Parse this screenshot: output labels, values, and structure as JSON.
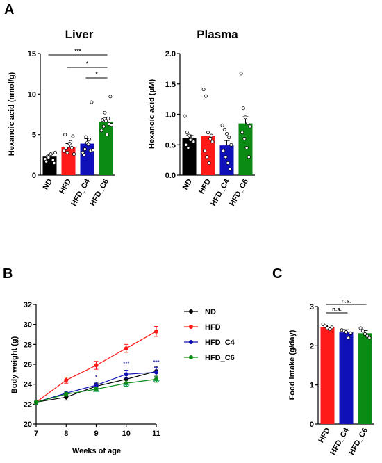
{
  "panels": {
    "a": "A",
    "b": "B",
    "c": "C"
  },
  "colors": {
    "ND": "#000000",
    "HFD": "#ff1a1a",
    "HFD_C4": "#1010b8",
    "HFD_C6": "#0b8a14",
    "sig_blue": "#2b2ba0",
    "sig_green": "#10a060"
  },
  "chart_data": [
    {
      "id": "liver",
      "type": "bar",
      "title": "Liver",
      "ylabel": "Hexanoic acid (nmol/g)",
      "ylim": [
        0,
        15
      ],
      "yticks": [
        "0",
        "5",
        "10",
        "15"
      ],
      "categories": [
        "ND",
        "HFD",
        "HFD_C4",
        "HFD_C6"
      ],
      "values": [
        2.3,
        3.5,
        3.9,
        6.6
      ],
      "errors": [
        0.3,
        0.4,
        0.6,
        0.5
      ],
      "points": [
        [
          2.0,
          2.3,
          2.5,
          2.7,
          1.5,
          1.7,
          2.2,
          2.6,
          1.9,
          2.8
        ],
        [
          3.0,
          3.3,
          3.6,
          4.1,
          4.8,
          5.0,
          2.8,
          3.9,
          3.4,
          2.6
        ],
        [
          2.8,
          3.2,
          4.0,
          4.4,
          9.0,
          2.5,
          4.7,
          3.8,
          3.0,
          3.1
        ],
        [
          5.5,
          6.0,
          6.7,
          7.0,
          9.7,
          6.8,
          7.7,
          5.0,
          6.3,
          6.2
        ]
      ],
      "brackets": [
        {
          "from": 0,
          "to": 3,
          "label": "***"
        },
        {
          "from": 1,
          "to": 3,
          "label": "*"
        },
        {
          "from": 2,
          "to": 3,
          "label": "*"
        }
      ]
    },
    {
      "id": "plasma",
      "type": "bar",
      "title": "Plasma",
      "ylabel": "Hexanoic acid (μM)",
      "ylim": [
        0,
        2.0
      ],
      "yticks": [
        "0.0",
        "0.5",
        "1.0",
        "1.5",
        "2.0"
      ],
      "categories": [
        "ND",
        "HFD",
        "HFD_C4",
        "HFD_C6"
      ],
      "values": [
        0.61,
        0.64,
        0.49,
        0.85
      ],
      "errors": [
        0.05,
        0.12,
        0.08,
        0.11
      ],
      "points": [
        [
          0.97,
          0.7,
          0.65,
          0.6,
          0.55,
          0.5,
          0.45,
          0.58,
          0.63
        ],
        [
          1.41,
          1.3,
          0.7,
          0.6,
          0.55,
          0.4,
          0.3,
          0.2,
          0.65
        ],
        [
          0.82,
          0.75,
          0.68,
          0.62,
          0.5,
          0.4,
          0.3,
          0.2,
          0.1
        ],
        [
          1.67,
          1.1,
          0.95,
          0.85,
          0.8,
          0.7,
          0.6,
          0.45,
          0.3
        ]
      ]
    },
    {
      "id": "bodyweight",
      "type": "line",
      "xlabel": "Weeks of age",
      "ylabel": "Body weight (g)",
      "xlim": [
        7,
        11
      ],
      "ylim": [
        20,
        32
      ],
      "xticks": [
        "7",
        "8",
        "9",
        "10",
        "11"
      ],
      "yticks": [
        "20",
        "22",
        "24",
        "26",
        "28",
        "30",
        "32"
      ],
      "x": [
        7,
        8,
        9,
        10,
        11
      ],
      "series": [
        {
          "name": "ND",
          "colorKey": "ND",
          "values": [
            22.2,
            22.7,
            23.8,
            24.5,
            25.3
          ],
          "errors": [
            0.2,
            0.3,
            0.3,
            0.4,
            0.5
          ]
        },
        {
          "name": "HFD",
          "colorKey": "HFD",
          "values": [
            22.2,
            24.4,
            25.9,
            27.6,
            29.3
          ],
          "errors": [
            0.2,
            0.3,
            0.4,
            0.4,
            0.5
          ]
        },
        {
          "name": "HFD_C4",
          "colorKey": "HFD_C4",
          "values": [
            22.2,
            23.1,
            23.9,
            25.0,
            25.2
          ],
          "errors": [
            0.2,
            0.2,
            0.3,
            0.4,
            0.5
          ]
        },
        {
          "name": "HFD_C6",
          "colorKey": "HFD_C6",
          "values": [
            22.2,
            23.0,
            23.5,
            24.1,
            24.5
          ],
          "errors": [
            0.2,
            0.2,
            0.2,
            0.3,
            0.3
          ]
        }
      ],
      "annotations": [
        {
          "x": 9,
          "y": 24.5,
          "text": "*",
          "colorKey": "sig_blue"
        },
        {
          "x": 10,
          "y": 25.9,
          "text": "***",
          "colorKey": "sig_blue"
        },
        {
          "x": 11,
          "y": 26.0,
          "text": "***",
          "colorKey": "sig_blue"
        },
        {
          "x": 9,
          "y": 23.0,
          "text": "***",
          "colorKey": "sig_green"
        },
        {
          "x": 10,
          "y": 23.6,
          "text": "***",
          "colorKey": "sig_green"
        },
        {
          "x": 11,
          "y": 24.0,
          "text": "***",
          "colorKey": "sig_green"
        }
      ],
      "legend": "top-right"
    },
    {
      "id": "food",
      "type": "bar",
      "ylabel": "Food intake (g/day)",
      "ylim": [
        0,
        3
      ],
      "yticks": [
        "0",
        "1",
        "2",
        "3"
      ],
      "categories": [
        "HFD",
        "HFD_C4",
        "HFD_C6"
      ],
      "values": [
        2.48,
        2.34,
        2.32
      ],
      "errors": [
        0.05,
        0.07,
        0.07
      ],
      "points": [
        [
          2.55,
          2.5,
          2.45,
          2.42,
          2.47
        ],
        [
          2.4,
          2.38,
          2.35,
          2.2,
          2.32
        ],
        [
          2.45,
          2.38,
          2.3,
          2.25,
          2.2
        ]
      ],
      "brackets": [
        {
          "from": 0,
          "to": 2,
          "label": "n.s."
        },
        {
          "from": 0,
          "to": 1,
          "label": "n.s."
        }
      ]
    }
  ]
}
